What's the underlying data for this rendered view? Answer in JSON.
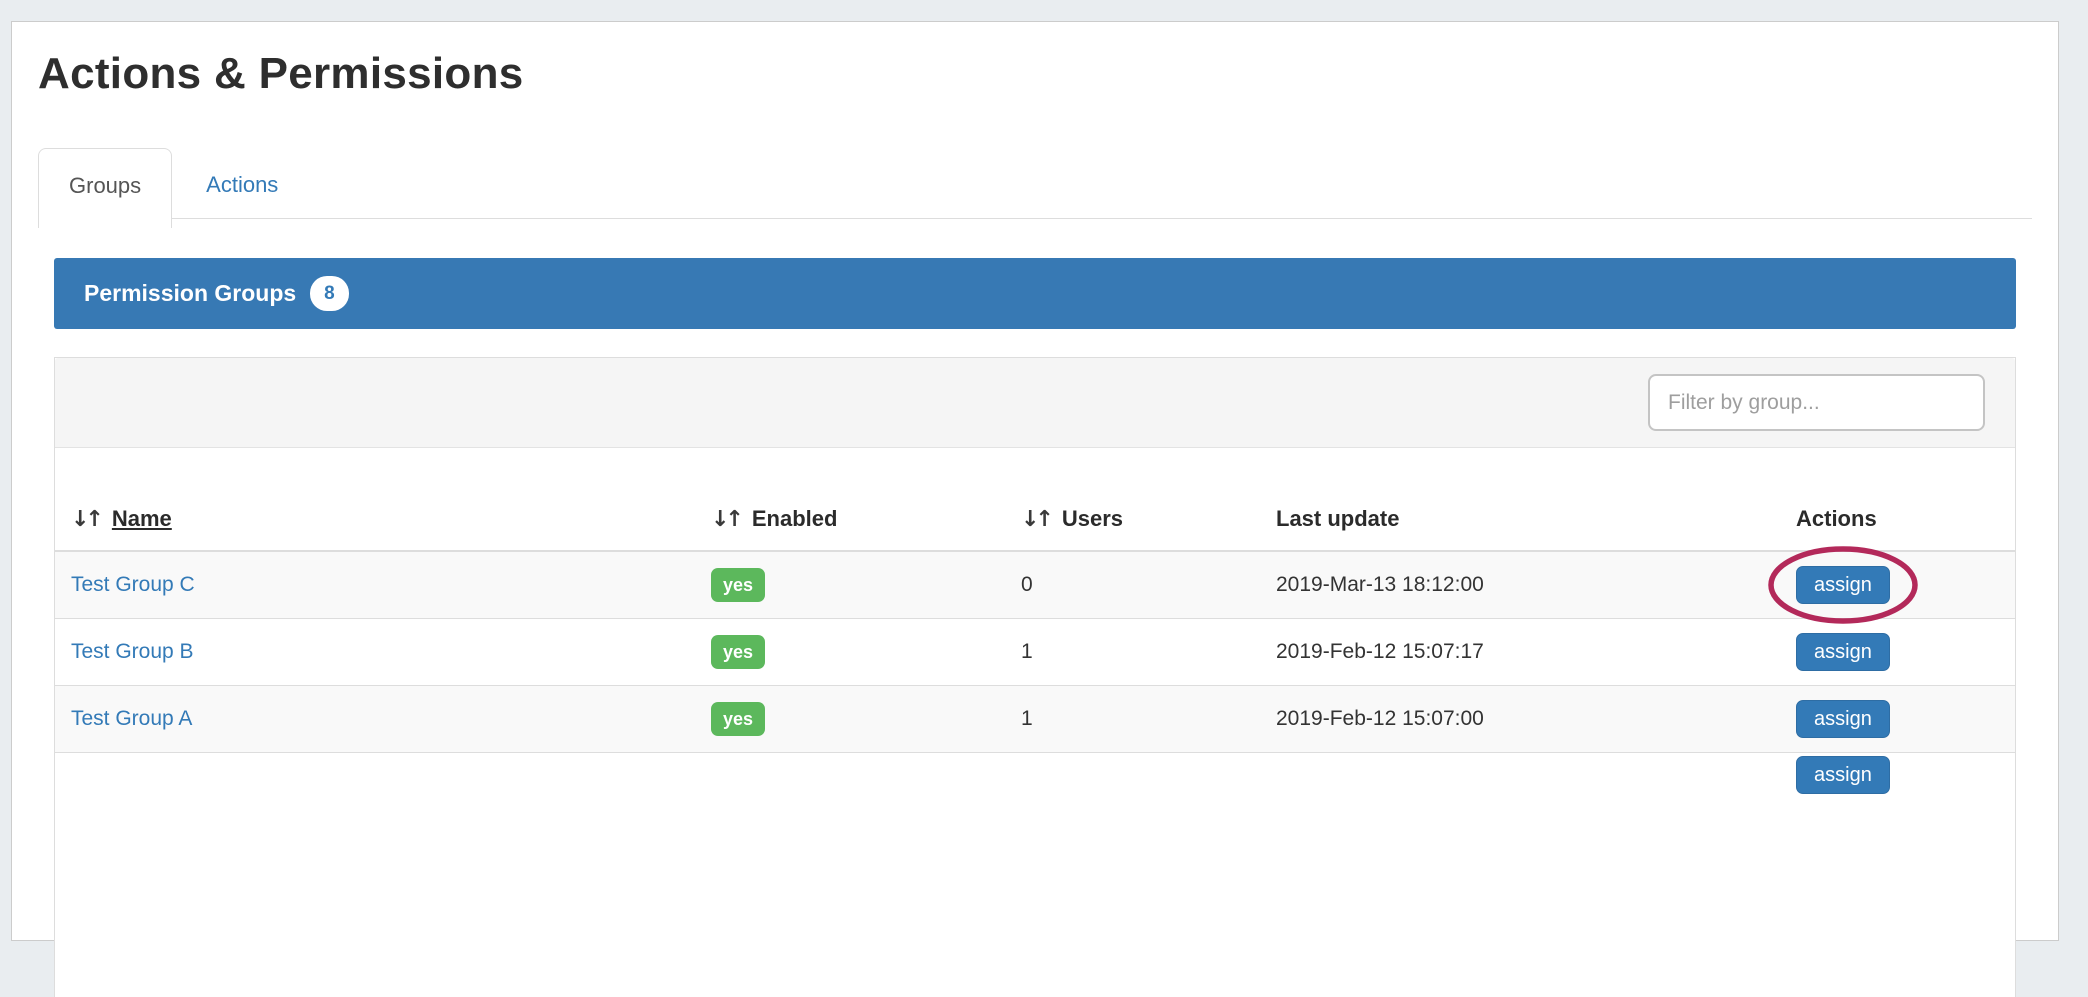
{
  "page": {
    "title": "Actions & Permissions"
  },
  "tabs": [
    {
      "label": "Groups",
      "active": true
    },
    {
      "label": "Actions",
      "active": false
    }
  ],
  "panel": {
    "title": "Permission Groups",
    "count": "8"
  },
  "toolbar": {
    "filter_placeholder": "Filter by group..."
  },
  "table": {
    "sort_icon": "↓↑",
    "columns": [
      {
        "label": "Name",
        "sortable": true,
        "underlined": true
      },
      {
        "label": "Enabled",
        "sortable": true,
        "underlined": false
      },
      {
        "label": "Users",
        "sortable": true,
        "underlined": false
      },
      {
        "label": "Last update",
        "sortable": false,
        "underlined": false
      },
      {
        "label": "Actions",
        "sortable": false,
        "underlined": false
      }
    ],
    "rows": [
      {
        "name": "Test Group C",
        "enabled": "yes",
        "users": "0",
        "last_update": "2019-Mar-13 18:12:00",
        "action": "assign",
        "highlighted": true
      },
      {
        "name": "Test Group B",
        "enabled": "yes",
        "users": "1",
        "last_update": "2019-Feb-12 15:07:17",
        "action": "assign",
        "highlighted": false
      },
      {
        "name": "Test Group A",
        "enabled": "yes",
        "users": "1",
        "last_update": "2019-Feb-12 15:07:00",
        "action": "assign",
        "highlighted": false
      }
    ],
    "partial_row": {
      "action": "assign"
    }
  },
  "colors": {
    "primary_blue": "#337ab7",
    "panel_blue": "#3779b4",
    "success_green": "#5cb85c",
    "highlight_ellipse": "#b3295a",
    "page_background": "#e9edf0"
  }
}
